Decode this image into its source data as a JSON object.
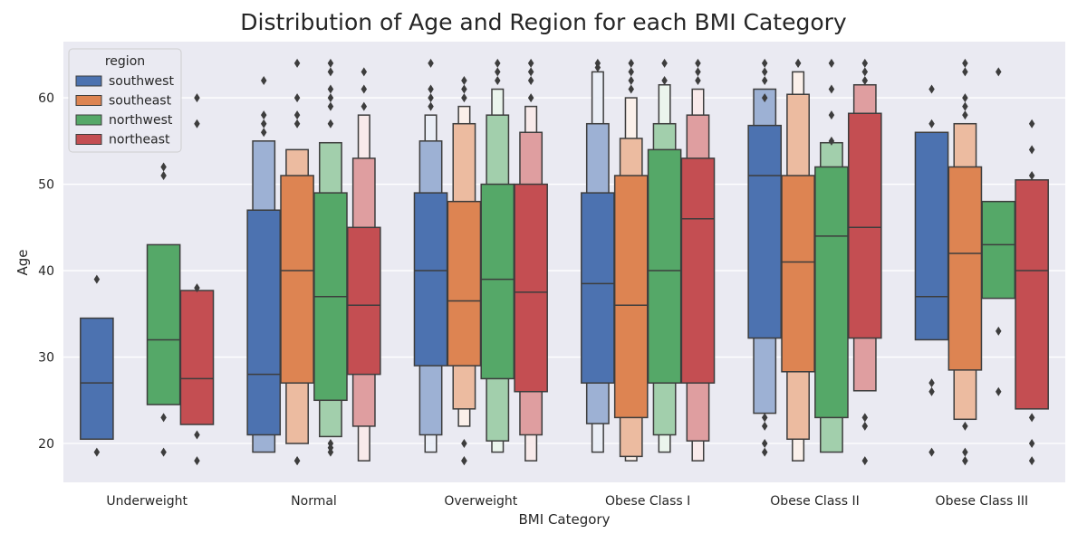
{
  "chart_data": {
    "type": "boxen",
    "title": "Distribution of Age and Region for each BMI Category",
    "xlabel": "BMI Category",
    "ylabel": "Age",
    "ylim": [
      15.5,
      66.5
    ],
    "yticks": [
      20,
      30,
      40,
      50,
      60
    ],
    "grid": true,
    "legend": {
      "title": "region",
      "placement": "top-left"
    },
    "categories": [
      "Underweight",
      "Normal",
      "Overweight",
      "Obese Class I",
      "Obese Class II",
      "Obese Class III"
    ],
    "series": [
      {
        "name": "southwest",
        "color": "#4c72b0",
        "boxes": [
          {
            "category": "Underweight",
            "median": 27,
            "levels": [
              [
                20.5,
                34.5
              ]
            ],
            "outliers": [
              39,
              19
            ]
          },
          {
            "category": "Normal",
            "median": 28,
            "levels": [
              [
                21,
                47
              ],
              [
                19,
                55
              ]
            ],
            "outliers": [
              62,
              58,
              57,
              56
            ]
          },
          {
            "category": "Overweight",
            "median": 40,
            "levels": [
              [
                29,
                49
              ],
              [
                21,
                55
              ],
              [
                19,
                58
              ]
            ],
            "outliers": [
              64,
              61,
              60,
              59
            ]
          },
          {
            "category": "Obese Class I",
            "median": 38.5,
            "levels": [
              [
                27,
                49
              ],
              [
                22.3,
                57
              ],
              [
                19,
                63
              ]
            ],
            "outliers": [
              64,
              63.5
            ]
          },
          {
            "category": "Obese Class II",
            "median": 51,
            "levels": [
              [
                32.2,
                56.8
              ],
              [
                23.5,
                61
              ]
            ],
            "outliers": [
              64,
              63,
              62,
              60,
              23,
              22,
              20,
              19
            ]
          },
          {
            "category": "Obese Class III",
            "median": 37,
            "levels": [
              [
                32,
                56
              ]
            ],
            "outliers": [
              61,
              57,
              27,
              26,
              19
            ]
          }
        ]
      },
      {
        "name": "southeast",
        "color": "#dd8452",
        "boxes": [
          {
            "category": "Normal",
            "median": 40,
            "levels": [
              [
                27,
                51
              ],
              [
                20,
                54
              ]
            ],
            "outliers": [
              64,
              60,
              58,
              57,
              18,
              18
            ]
          },
          {
            "category": "Overweight",
            "median": 36.5,
            "levels": [
              [
                29,
                48
              ],
              [
                24,
                57
              ],
              [
                22,
                59
              ]
            ],
            "outliers": [
              62,
              61,
              60,
              20,
              18,
              18
            ]
          },
          {
            "category": "Obese Class I",
            "median": 36,
            "levels": [
              [
                23,
                51
              ],
              [
                18.5,
                55.3
              ],
              [
                18,
                60
              ]
            ],
            "outliers": [
              64,
              63,
              62,
              61
            ]
          },
          {
            "category": "Obese Class II",
            "median": 41,
            "levels": [
              [
                28.3,
                51
              ],
              [
                20.5,
                60.4
              ],
              [
                18,
                63
              ]
            ],
            "outliers": [
              64,
              64
            ]
          },
          {
            "category": "Obese Class III",
            "median": 42,
            "levels": [
              [
                28.5,
                52
              ],
              [
                22.8,
                57
              ]
            ],
            "outliers": [
              64,
              63,
              60,
              59,
              58,
              22,
              19,
              18,
              18
            ]
          }
        ]
      },
      {
        "name": "northwest",
        "color": "#55a868",
        "boxes": [
          {
            "category": "Underweight",
            "median": 32,
            "levels": [
              [
                24.5,
                43
              ]
            ],
            "outliers": [
              52,
              51,
              23,
              19
            ]
          },
          {
            "category": "Normal",
            "median": 37,
            "levels": [
              [
                25,
                49
              ],
              [
                20.8,
                54.8
              ]
            ],
            "outliers": [
              64,
              63,
              61,
              60,
              59,
              57,
              20,
              19.5,
              19
            ]
          },
          {
            "category": "Overweight",
            "median": 39,
            "levels": [
              [
                27.5,
                50
              ],
              [
                20.3,
                58
              ],
              [
                19,
                61
              ]
            ],
            "outliers": [
              64,
              63,
              62
            ]
          },
          {
            "category": "Obese Class I",
            "median": 40,
            "levels": [
              [
                27,
                54
              ],
              [
                21,
                57
              ],
              [
                19,
                61.5
              ]
            ],
            "outliers": [
              64,
              62
            ]
          },
          {
            "category": "Obese Class II",
            "median": 44,
            "levels": [
              [
                23,
                52
              ],
              [
                19,
                54.8
              ]
            ],
            "outliers": [
              64,
              61,
              58,
              55
            ]
          },
          {
            "category": "Obese Class III",
            "median": 43,
            "levels": [
              [
                36.8,
                48
              ]
            ],
            "outliers": [
              63,
              33,
              26
            ]
          }
        ]
      },
      {
        "name": "northeast",
        "color": "#c44e52",
        "boxes": [
          {
            "category": "Underweight",
            "median": 27.5,
            "levels": [
              [
                22.2,
                37.7
              ]
            ],
            "outliers": [
              60,
              57,
              38,
              21,
              18
            ]
          },
          {
            "category": "Normal",
            "median": 36,
            "levels": [
              [
                28,
                45
              ],
              [
                22,
                53
              ],
              [
                18,
                58
              ]
            ],
            "outliers": [
              63,
              61,
              59
            ]
          },
          {
            "category": "Overweight",
            "median": 37.5,
            "levels": [
              [
                26,
                50
              ],
              [
                21,
                56
              ],
              [
                18,
                59
              ]
            ],
            "outliers": [
              64,
              63,
              62,
              60
            ]
          },
          {
            "category": "Obese Class I",
            "median": 46,
            "levels": [
              [
                27,
                53
              ],
              [
                20.3,
                58
              ],
              [
                18,
                61
              ]
            ],
            "outliers": [
              64,
              63,
              62
            ]
          },
          {
            "category": "Obese Class II",
            "median": 45,
            "levels": [
              [
                32.2,
                58.2
              ],
              [
                26.1,
                61.5
              ]
            ],
            "outliers": [
              64,
              63,
              62,
              23,
              22,
              18
            ]
          },
          {
            "category": "Obese Class III",
            "median": 40,
            "levels": [
              [
                24,
                50.5
              ]
            ],
            "outliers": [
              57,
              54,
              51,
              23,
              20,
              18
            ]
          }
        ]
      }
    ]
  }
}
